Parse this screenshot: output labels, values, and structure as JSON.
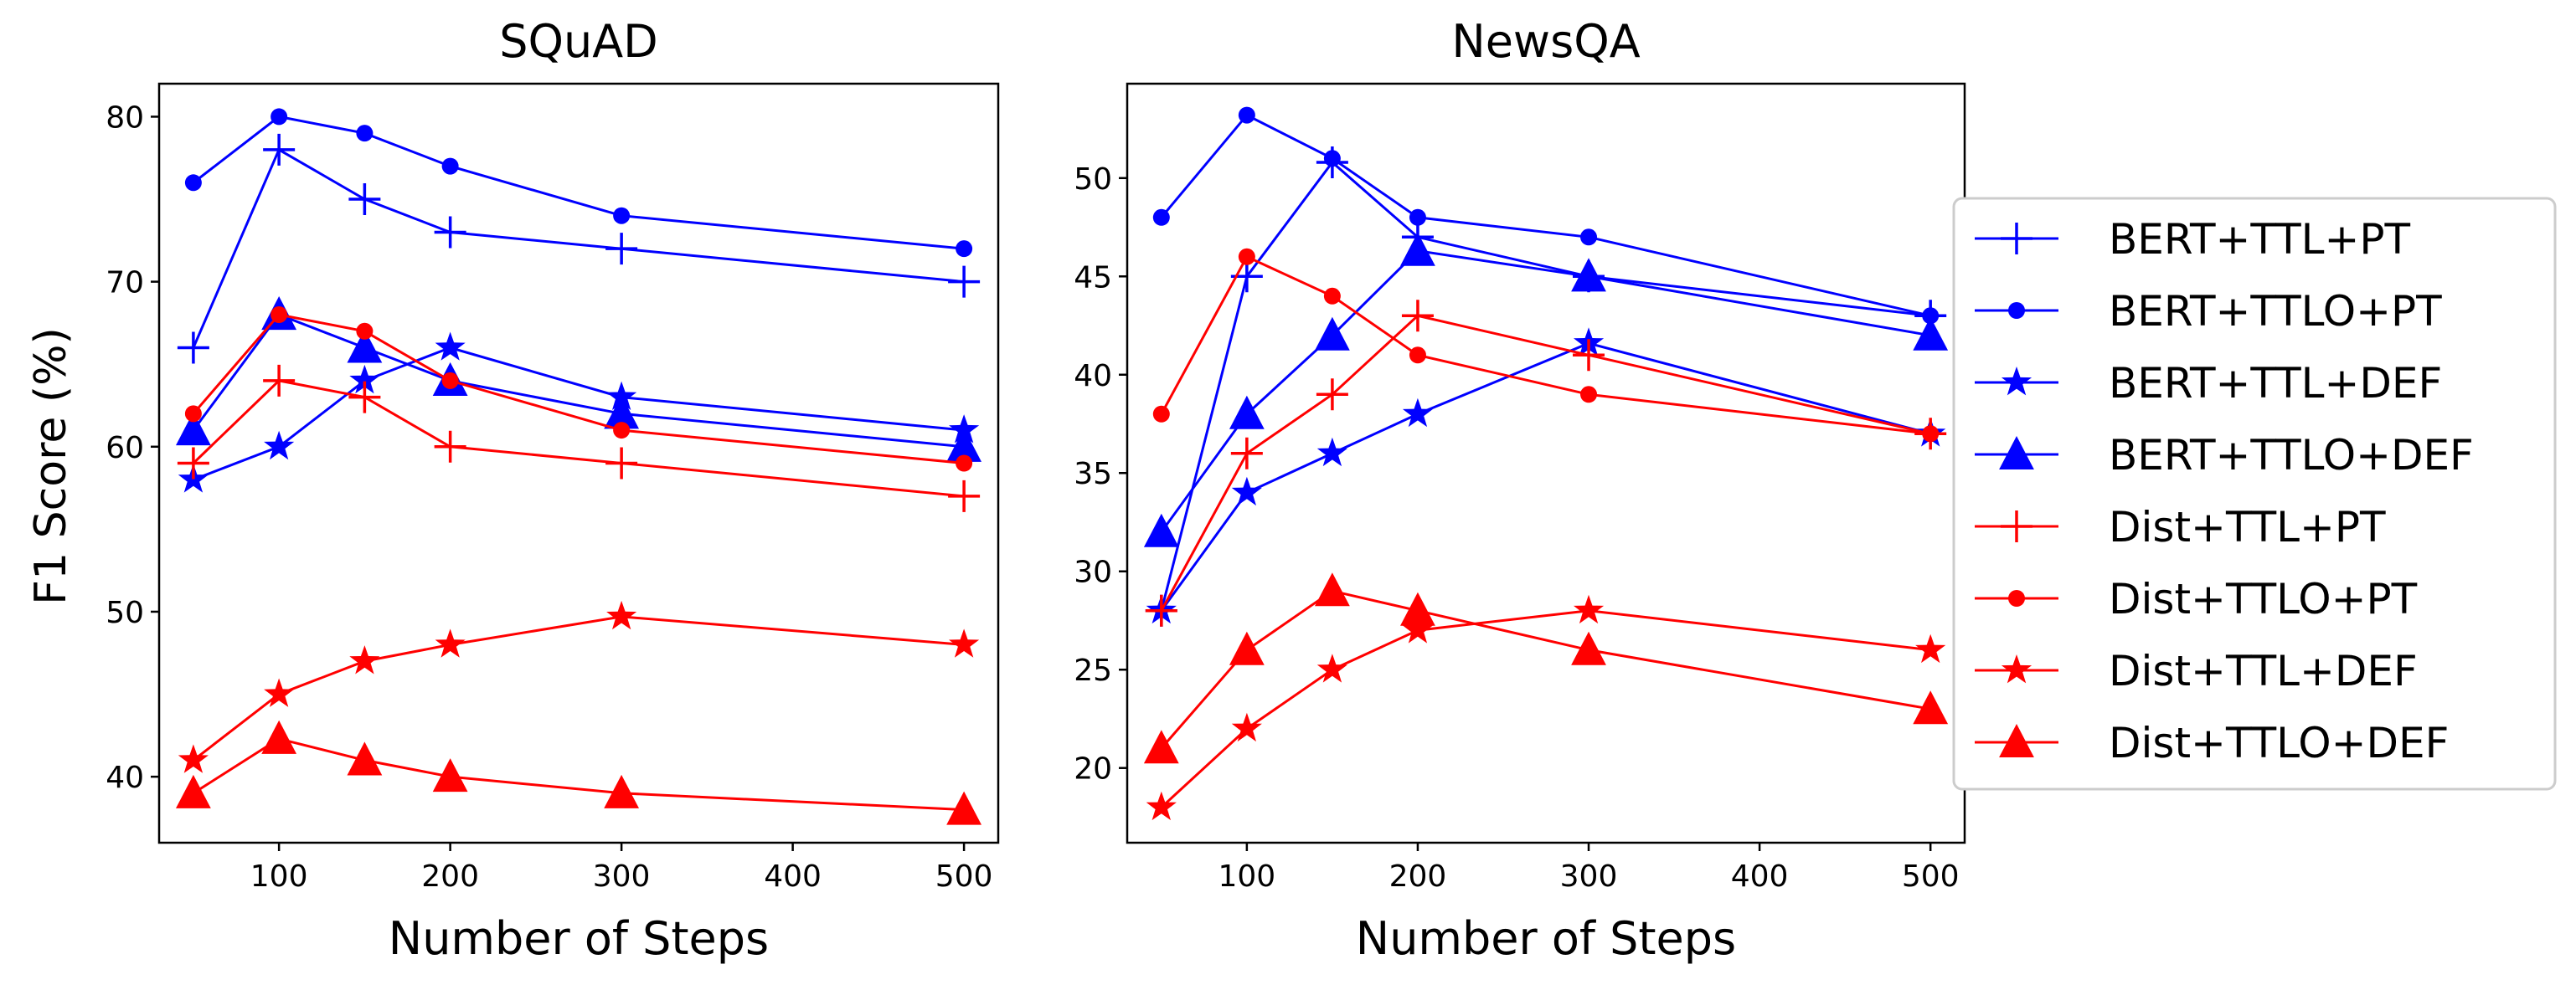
{
  "chart_data": [
    {
      "type": "line",
      "title": "SQuAD",
      "xlabel": "Number of Steps",
      "ylabel": "F1 Score (%)",
      "xlim": [
        30,
        520
      ],
      "ylim": [
        36,
        82
      ],
      "x": [
        50,
        100,
        150,
        200,
        300,
        500
      ],
      "xticks": [
        100,
        200,
        300,
        400,
        500
      ],
      "yticks": [
        40,
        50,
        60,
        70,
        80
      ],
      "grid": false,
      "series": [
        {
          "name": "BERT+TTL+PT",
          "color": "#0000ff",
          "marker": "plus",
          "values": [
            66,
            78,
            75,
            73,
            72,
            70
          ]
        },
        {
          "name": "BERT+TTLO+PT",
          "color": "#0000ff",
          "marker": "circle",
          "values": [
            76,
            80,
            79,
            77,
            74,
            72
          ]
        },
        {
          "name": "BERT+TTL+DEF",
          "color": "#0000ff",
          "marker": "star",
          "values": [
            58,
            60,
            64,
            66,
            63,
            61
          ]
        },
        {
          "name": "BERT+TTLO+DEF",
          "color": "#0000ff",
          "marker": "triangle",
          "values": [
            61,
            68,
            66,
            64,
            62,
            60
          ]
        },
        {
          "name": "Dist+TTL+PT",
          "color": "#ff0000",
          "marker": "plus",
          "values": [
            59,
            64,
            63,
            60,
            59,
            57
          ]
        },
        {
          "name": "Dist+TTLO+PT",
          "color": "#ff0000",
          "marker": "circle",
          "values": [
            62,
            68,
            67,
            64,
            61,
            59
          ]
        },
        {
          "name": "Dist+TTL+DEF",
          "color": "#ff0000",
          "marker": "star",
          "values": [
            41,
            45,
            47,
            48,
            49.7,
            48
          ]
        },
        {
          "name": "Dist+TTLO+DEF",
          "color": "#ff0000",
          "marker": "triangle",
          "values": [
            39,
            42.3,
            41,
            40,
            39,
            38
          ]
        }
      ]
    },
    {
      "type": "line",
      "title": "NewsQA",
      "xlabel": "Number of Steps",
      "ylabel": "",
      "xlim": [
        30,
        520
      ],
      "ylim": [
        16.2,
        54.8
      ],
      "x": [
        50,
        100,
        150,
        200,
        300,
        500
      ],
      "xticks": [
        100,
        200,
        300,
        400,
        500
      ],
      "yticks": [
        20,
        25,
        30,
        35,
        40,
        45,
        50
      ],
      "grid": false,
      "series": [
        {
          "name": "BERT+TTL+PT",
          "color": "#0000ff",
          "marker": "plus",
          "values": [
            28,
            45,
            50.8,
            47,
            45,
            43
          ]
        },
        {
          "name": "BERT+TTLO+PT",
          "color": "#0000ff",
          "marker": "circle",
          "values": [
            48,
            53.2,
            51,
            48,
            47,
            43
          ]
        },
        {
          "name": "BERT+TTL+DEF",
          "color": "#0000ff",
          "marker": "star",
          "values": [
            28,
            34,
            36,
            38,
            41.6,
            37
          ]
        },
        {
          "name": "BERT+TTLO+DEF",
          "color": "#0000ff",
          "marker": "triangle",
          "values": [
            32,
            38,
            42,
            46.3,
            45,
            42
          ]
        },
        {
          "name": "Dist+TTL+PT",
          "color": "#ff0000",
          "marker": "plus",
          "values": [
            28,
            36,
            39,
            43,
            41,
            37
          ]
        },
        {
          "name": "Dist+TTLO+PT",
          "color": "#ff0000",
          "marker": "circle",
          "values": [
            38,
            46,
            44,
            41,
            39,
            37
          ]
        },
        {
          "name": "Dist+TTL+DEF",
          "color": "#ff0000",
          "marker": "star",
          "values": [
            18,
            22,
            25,
            27,
            28,
            26
          ]
        },
        {
          "name": "Dist+TTLO+DEF",
          "color": "#ff0000",
          "marker": "triangle",
          "values": [
            21,
            26,
            29,
            28,
            26,
            23
          ]
        }
      ]
    }
  ],
  "legend": {
    "placement": "right",
    "entries": [
      {
        "label": "BERT+TTL+PT",
        "color": "#0000ff",
        "marker": "plus"
      },
      {
        "label": "BERT+TTLO+PT",
        "color": "#0000ff",
        "marker": "circle"
      },
      {
        "label": "BERT+TTL+DEF",
        "color": "#0000ff",
        "marker": "star"
      },
      {
        "label": "BERT+TTLO+DEF",
        "color": "#0000ff",
        "marker": "triangle"
      },
      {
        "label": "Dist+TTL+PT",
        "color": "#ff0000",
        "marker": "plus"
      },
      {
        "label": "Dist+TTLO+PT",
        "color": "#ff0000",
        "marker": "circle"
      },
      {
        "label": "Dist+TTL+DEF",
        "color": "#ff0000",
        "marker": "star"
      },
      {
        "label": "Dist+TTLO+DEF",
        "color": "#ff0000",
        "marker": "triangle"
      }
    ]
  }
}
